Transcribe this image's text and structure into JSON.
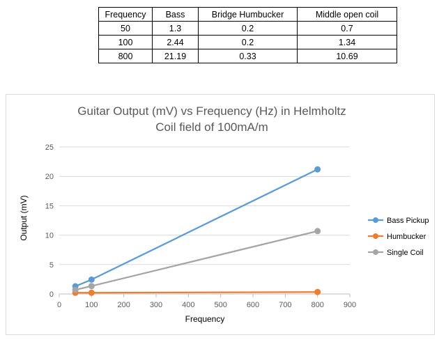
{
  "table": {
    "headers": [
      "Frequency",
      "Bass",
      "Bridge Humbucker",
      "Middle open coil"
    ],
    "rows": [
      [
        "50",
        "1.3",
        "0.2",
        "0.7"
      ],
      [
        "100",
        "2.44",
        "0.2",
        "1.34"
      ],
      [
        "800",
        "21.19",
        "0.33",
        "10.69"
      ]
    ]
  },
  "chart_data": {
    "type": "line",
    "title_lines": [
      "Guitar Output (mV) vs Frequency (Hz) in Helmholtz",
      "Coil field of 100mA/m"
    ],
    "xlabel": "Frequency",
    "ylabel": "Output (mV)",
    "x": [
      50,
      100,
      800
    ],
    "xlim": [
      0,
      900
    ],
    "ylim": [
      0,
      25
    ],
    "x_ticks": [
      "0",
      "100",
      "200",
      "300",
      "400",
      "500",
      "600",
      "700",
      "800",
      "900"
    ],
    "y_ticks": [
      "0",
      "5",
      "10",
      "15",
      "20",
      "25"
    ],
    "grid": "horizontal",
    "legend_position": "right",
    "series": [
      {
        "name": "Bass Pickup",
        "values": [
          1.3,
          2.44,
          21.19
        ],
        "color": "#5b9bd5"
      },
      {
        "name": "Humbucker",
        "values": [
          0.2,
          0.2,
          0.33
        ],
        "color": "#ed7d31"
      },
      {
        "name": "Single Coil",
        "values": [
          0.7,
          1.34,
          10.69
        ],
        "color": "#a5a5a5"
      }
    ]
  }
}
